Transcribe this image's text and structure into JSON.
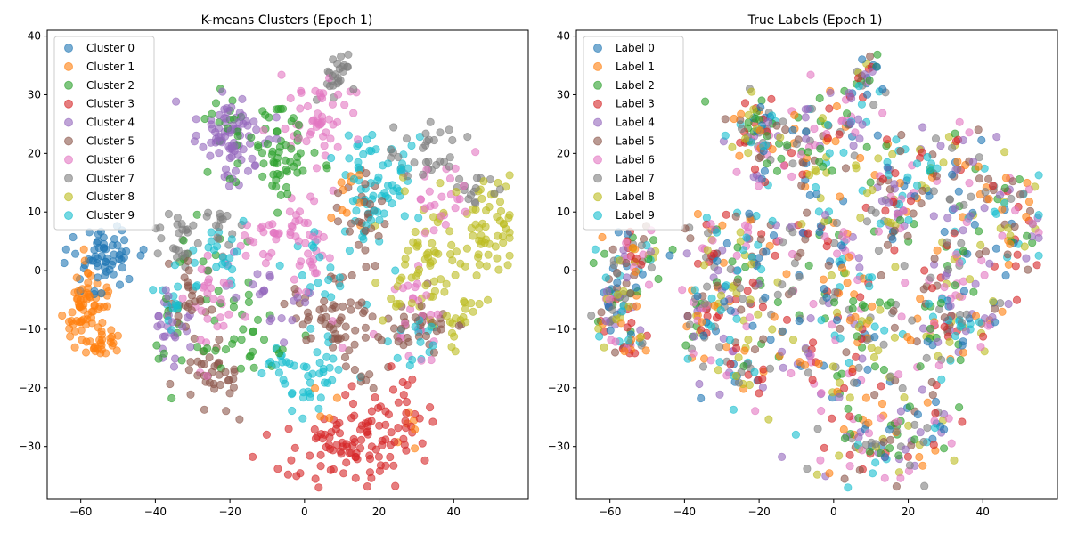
{
  "chart_data": [
    {
      "type": "scatter",
      "title": "K-means Clusters (Epoch 1)",
      "xlabel": "",
      "ylabel": "",
      "xlim": [
        -69,
        60
      ],
      "ylim": [
        -39,
        41
      ],
      "xticks": [
        "−60",
        "−40",
        "−20",
        "0",
        "20",
        "40"
      ],
      "xtick_values": [
        -60,
        -40,
        -20,
        0,
        20,
        40
      ],
      "yticks": [
        "−30",
        "−20",
        "−10",
        "0",
        "10",
        "20",
        "30",
        "40"
      ],
      "ytick_values": [
        -30,
        -20,
        -10,
        0,
        10,
        20,
        30,
        40
      ],
      "grid": false,
      "legend_position": "top-left",
      "marker_alpha": 0.6,
      "series": [
        {
          "name": "Cluster 0",
          "color": "#1f77b4",
          "centers": [
            [
              -54,
              1,
              5,
              3,
              60
            ]
          ]
        },
        {
          "name": "Cluster 1",
          "color": "#ff7f0e",
          "centers": [
            [
              -59,
              -6,
              3,
              4,
              70
            ],
            [
              -54,
              -12,
              2,
              2,
              20
            ],
            [
              12,
              12,
              3,
              2,
              10
            ],
            [
              28,
              -28,
              2,
              2,
              6
            ],
            [
              5,
              -23,
              2,
              2,
              4
            ]
          ]
        },
        {
          "name": "Cluster 2",
          "color": "#2ca02c",
          "centers": [
            [
              -7,
              20,
              5,
              4,
              60
            ],
            [
              -22,
              26,
              3,
              3,
              15
            ],
            [
              -25,
              -5,
              5,
              8,
              25
            ],
            [
              -13,
              -10,
              5,
              5,
              20
            ],
            [
              -35,
              -10,
              3,
              5,
              12
            ]
          ]
        },
        {
          "name": "Cluster 3",
          "color": "#d62728",
          "centers": [
            [
              12,
              -30,
              9,
              3,
              90
            ],
            [
              22,
              -24,
              6,
              3,
              30
            ]
          ]
        },
        {
          "name": "Cluster 4",
          "color": "#9467bd",
          "centers": [
            [
              -19,
              22,
              5,
              4,
              80
            ],
            [
              -35,
              -10,
              3,
              4,
              25
            ],
            [
              -10,
              -5,
              4,
              4,
              20
            ]
          ]
        },
        {
          "name": "Cluster 5",
          "color": "#8c564b",
          "centers": [
            [
              -24,
              -18,
              4,
              3,
              35
            ],
            [
              5,
              -8,
              6,
              3,
              45
            ],
            [
              15,
              8,
              4,
              4,
              30
            ],
            [
              28,
              -10,
              6,
              3,
              40
            ],
            [
              -30,
              -5,
              3,
              4,
              25
            ],
            [
              15,
              -16,
              3,
              3,
              12
            ]
          ]
        },
        {
          "name": "Cluster 6",
          "color": "#e377c2",
          "centers": [
            [
              5,
              26,
              5,
              4,
              50
            ],
            [
              0,
              5,
              5,
              6,
              45
            ],
            [
              -25,
              -4,
              4,
              5,
              30
            ],
            [
              30,
              -7,
              4,
              4,
              25
            ],
            [
              35,
              13,
              4,
              4,
              25
            ],
            [
              -12,
              5,
              3,
              3,
              15
            ]
          ]
        },
        {
          "name": "Cluster 7",
          "color": "#7f7f7f",
          "centers": [
            [
              -34,
              6,
              3,
              3,
              25
            ],
            [
              -22,
              7,
              3,
              3,
              15
            ],
            [
              8,
              33,
              3,
              2,
              25
            ],
            [
              30,
              20,
              6,
              3,
              30
            ],
            [
              45,
              14,
              3,
              2,
              15
            ]
          ]
        },
        {
          "name": "Cluster 8",
          "color": "#bcbd22",
          "centers": [
            [
              48,
              8,
              4,
              5,
              60
            ],
            [
              33,
              0,
              6,
              6,
              60
            ],
            [
              42,
              -8,
              3,
              3,
              15
            ]
          ]
        },
        {
          "name": "Cluster 9",
          "color": "#17becf",
          "centers": [
            [
              20,
              15,
              6,
              5,
              70
            ],
            [
              0,
              -18,
              6,
              3,
              45
            ],
            [
              -22,
              4,
              4,
              2,
              20
            ],
            [
              -35,
              -5,
              3,
              3,
              15
            ],
            [
              30,
              -12,
              3,
              3,
              15
            ],
            [
              5,
              0,
              4,
              4,
              20
            ]
          ]
        }
      ]
    },
    {
      "type": "scatter",
      "title": "True Labels (Epoch 1)",
      "xlabel": "",
      "ylabel": "",
      "xlim": [
        -69,
        60
      ],
      "ylim": [
        -39,
        41
      ],
      "xticks": [
        "−60",
        "−40",
        "−20",
        "0",
        "20",
        "40"
      ],
      "xtick_values": [
        -60,
        -40,
        -20,
        0,
        20,
        40
      ],
      "yticks": [
        "−30",
        "−20",
        "−10",
        "0",
        "10",
        "20",
        "30",
        "40"
      ],
      "ytick_values": [
        -30,
        -20,
        -10,
        0,
        10,
        20,
        30,
        40
      ],
      "grid": false,
      "legend_position": "top-left",
      "marker_alpha": 0.6,
      "series": [
        {
          "name": "Label 0",
          "color": "#1f77b4"
        },
        {
          "name": "Label 1",
          "color": "#ff7f0e"
        },
        {
          "name": "Label 2",
          "color": "#2ca02c"
        },
        {
          "name": "Label 3",
          "color": "#d62728"
        },
        {
          "name": "Label 4",
          "color": "#9467bd"
        },
        {
          "name": "Label 5",
          "color": "#8c564b"
        },
        {
          "name": "Label 6",
          "color": "#e377c2"
        },
        {
          "name": "Label 7",
          "color": "#7f7f7f"
        },
        {
          "name": "Label 8",
          "color": "#bcbd22"
        },
        {
          "name": "Label 9",
          "color": "#17becf"
        }
      ],
      "mirror_points_of": 0
    }
  ]
}
